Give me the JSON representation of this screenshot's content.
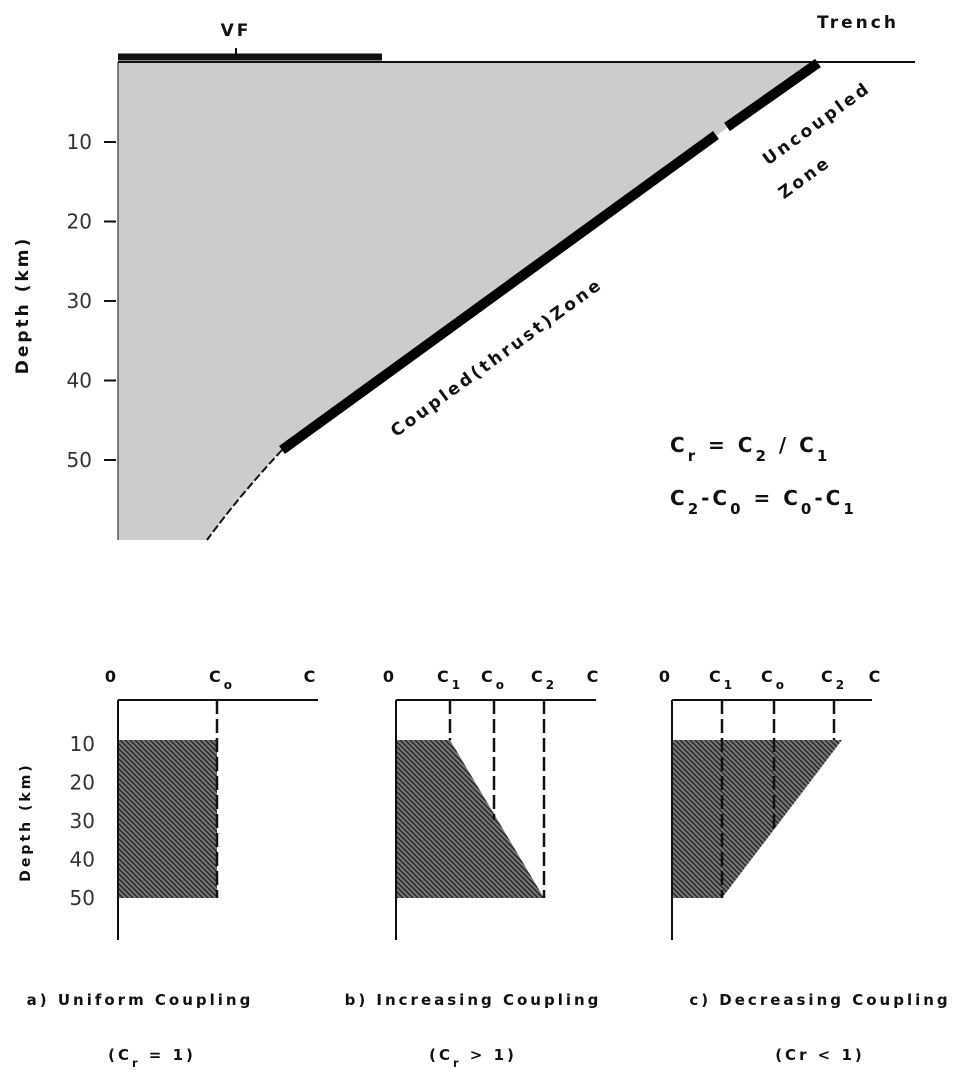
{
  "top": {
    "vf": "VF",
    "trench": "Trench",
    "uncoupled": [
      "Uncoupled",
      "Zone"
    ],
    "coupled": "Coupled(thrust)Zone",
    "y_label": "Depth (km)",
    "depth_ticks": [
      "10",
      "20",
      "30",
      "40",
      "50"
    ],
    "formula_1": [
      {
        "t": "C"
      },
      {
        "t": "r",
        "sub": true
      },
      {
        "t": " = C"
      },
      {
        "t": "2",
        "sub": true
      },
      {
        "t": " / C"
      },
      {
        "t": "1",
        "sub": true
      }
    ],
    "formula_2": [
      {
        "t": "C"
      },
      {
        "t": "2",
        "sub": true
      },
      {
        "t": "-C"
      },
      {
        "t": "0",
        "sub": true
      },
      {
        "t": " = C"
      },
      {
        "t": "0",
        "sub": true
      },
      {
        "t": "-C"
      },
      {
        "t": "1",
        "sub": true
      }
    ]
  },
  "panels": [
    {
      "x_labels": [
        [
          {
            "t": "0"
          }
        ],
        [
          {
            "t": "C"
          },
          {
            "t": "o",
            "sub": true
          }
        ],
        [
          {
            "t": "C"
          }
        ]
      ],
      "y_label": "Depth (km)",
      "depth_ticks": [
        "10",
        "20",
        "30",
        "40",
        "50"
      ],
      "caption": "a) Uniform Coupling",
      "ratio": [
        {
          "t": "(C"
        },
        {
          "t": "r",
          "sub": true
        },
        {
          "t": " = 1)"
        }
      ]
    },
    {
      "x_labels": [
        [
          {
            "t": "0"
          }
        ],
        [
          {
            "t": "C"
          },
          {
            "t": "1",
            "sub": true
          }
        ],
        [
          {
            "t": "C"
          },
          {
            "t": "o",
            "sub": true
          }
        ],
        [
          {
            "t": "C"
          },
          {
            "t": "2",
            "sub": true
          }
        ],
        [
          {
            "t": "C"
          }
        ]
      ],
      "caption": "b) Increasing Coupling",
      "ratio": [
        {
          "t": "(C"
        },
        {
          "t": "r",
          "sub": true
        },
        {
          "t": " > 1)"
        }
      ]
    },
    {
      "x_labels": [
        [
          {
            "t": "0"
          }
        ],
        [
          {
            "t": "C"
          },
          {
            "t": "1",
            "sub": true
          }
        ],
        [
          {
            "t": "C"
          },
          {
            "t": "o",
            "sub": true
          }
        ],
        [
          {
            "t": "C"
          },
          {
            "t": "2",
            "sub": true
          }
        ],
        [
          {
            "t": "C"
          }
        ]
      ],
      "caption": "c) Decreasing Coupling",
      "ratio": [
        {
          "t": "(Cr < 1)"
        }
      ]
    }
  ]
}
